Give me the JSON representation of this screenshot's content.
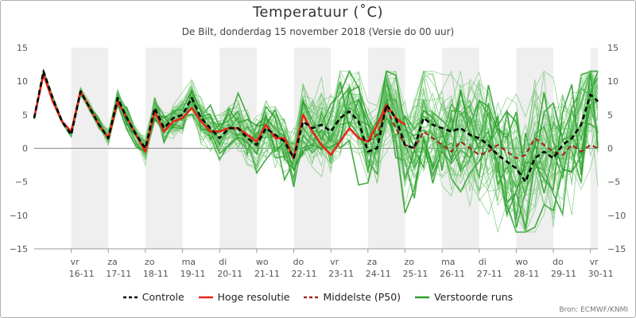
{
  "chart_data": {
    "type": "line",
    "title": "Temperatuur (˚C)",
    "subtitle": "De Bilt, donderdag 15 november 2018 (Versie do 00 uur)",
    "credits": "Bron: ECMWF/KNMI",
    "y_ticks": [
      "15",
      "10",
      "5",
      "0",
      "−5",
      "−10",
      "−15"
    ],
    "ylim": [
      -15,
      15
    ],
    "xlim_days": [
      15.0,
      30.2
    ],
    "x_ticks": [
      {
        "day": "vr",
        "date": "16-11",
        "x": 16.0
      },
      {
        "day": "za",
        "date": "17-11",
        "x": 17.0
      },
      {
        "day": "zo",
        "date": "18-11",
        "x": 18.0
      },
      {
        "day": "ma",
        "date": "19-11",
        "x": 19.0
      },
      {
        "day": "di",
        "date": "20-11",
        "x": 20.0
      },
      {
        "day": "wo",
        "date": "21-11",
        "x": 21.0
      },
      {
        "day": "do",
        "date": "22-11",
        "x": 22.0
      },
      {
        "day": "vr",
        "date": "23-11",
        "x": 23.0
      },
      {
        "day": "za",
        "date": "24-11",
        "x": 24.0
      },
      {
        "day": "zo",
        "date": "25-11",
        "x": 25.0
      },
      {
        "day": "ma",
        "date": "26-11",
        "x": 26.0
      },
      {
        "day": "di",
        "date": "27-11",
        "x": 27.0
      },
      {
        "day": "wo",
        "date": "28-11",
        "x": 28.0
      },
      {
        "day": "do",
        "date": "29-11",
        "x": 29.0
      },
      {
        "day": "vr",
        "date": "30-11",
        "x": 30.0
      }
    ],
    "grid": false,
    "legend_position": "bottom-center",
    "colors": {
      "controle": "#000000",
      "hoge_resolutie": "#e8261a",
      "middelste": "#a0281c",
      "runs": "#2ca02c",
      "runs_thin": "#6cc46c",
      "band": "#efefef"
    },
    "series": [
      {
        "name": "Controle",
        "style": "dashed",
        "x": [
          15.0,
          15.25,
          15.5,
          15.75,
          16.0,
          16.25,
          16.5,
          16.75,
          17.0,
          17.25,
          17.5,
          17.75,
          18.0,
          18.25,
          18.5,
          18.75,
          19.0,
          19.25,
          19.5,
          19.75,
          20.0,
          20.25,
          20.5,
          20.75,
          21.0,
          21.25,
          21.5,
          21.75,
          22.0,
          22.25,
          22.5,
          22.75,
          23.0,
          23.25,
          23.5,
          23.75,
          24.0,
          24.25,
          24.5,
          24.75,
          25.0,
          25.25,
          25.5,
          25.75,
          26.0,
          26.25,
          26.5,
          26.75,
          27.0,
          27.25,
          27.5,
          27.75,
          28.0,
          28.25,
          28.5,
          28.75,
          29.0,
          29.25,
          29.5,
          29.75,
          30.0,
          30.2
        ],
        "values": [
          4.5,
          11.5,
          7.5,
          4.0,
          2.0,
          8.5,
          6.0,
          3.5,
          1.5,
          7.5,
          4.5,
          2.0,
          0.0,
          6.0,
          3.0,
          4.5,
          5.0,
          7.5,
          4.5,
          3.0,
          1.5,
          3.0,
          3.0,
          1.5,
          0.5,
          3.0,
          2.0,
          1.0,
          -1.5,
          4.0,
          3.0,
          3.5,
          2.5,
          4.5,
          5.5,
          4.0,
          -0.5,
          0.0,
          6.5,
          4.5,
          0.5,
          0.0,
          4.5,
          3.5,
          3.0,
          2.5,
          3.0,
          2.0,
          1.5,
          0.5,
          -1.0,
          -2.0,
          -3.0,
          -5.0,
          -1.5,
          -0.5,
          -1.5,
          0.5,
          1.5,
          3.5,
          8.0,
          7.0
        ]
      },
      {
        "name": "Hoge resolutie",
        "style": "solid-thick",
        "x": [
          15.0,
          15.25,
          15.5,
          15.75,
          16.0,
          16.25,
          16.5,
          16.75,
          17.0,
          17.25,
          17.5,
          17.75,
          18.0,
          18.25,
          18.5,
          18.75,
          19.0,
          19.25,
          19.5,
          19.75,
          20.0,
          20.25,
          20.5,
          20.75,
          21.0,
          21.25,
          21.5,
          21.75,
          22.0,
          22.25,
          22.5,
          22.75,
          23.0,
          23.25,
          23.5,
          23.75,
          24.0,
          24.25,
          24.5,
          24.75,
          25.0
        ],
        "values": [
          4.5,
          11.0,
          7.0,
          4.0,
          2.5,
          8.5,
          6.0,
          3.5,
          1.5,
          7.0,
          4.5,
          2.0,
          -0.5,
          5.5,
          2.5,
          4.0,
          4.5,
          6.0,
          4.0,
          2.5,
          2.5,
          3.0,
          3.0,
          2.0,
          1.0,
          3.5,
          1.5,
          1.5,
          -1.5,
          5.0,
          2.5,
          0.5,
          -1.0,
          1.0,
          3.0,
          1.5,
          1.0,
          3.5,
          6.5,
          4.5,
          3.5
        ]
      },
      {
        "name": "Middelste (P50)",
        "style": "dashed",
        "x": [
          24.0,
          24.25,
          24.5,
          24.75,
          25.0,
          25.25,
          25.5,
          25.75,
          26.0,
          26.25,
          26.5,
          26.75,
          27.0,
          27.25,
          27.5,
          27.75,
          28.0,
          28.25,
          28.5,
          28.75,
          29.0,
          29.25,
          29.5,
          29.75,
          30.0,
          30.2
        ],
        "values": [
          1.0,
          2.0,
          6.0,
          3.0,
          0.5,
          0.0,
          2.5,
          1.5,
          0.5,
          -0.5,
          1.0,
          0.0,
          -1.0,
          -0.5,
          0.5,
          -0.5,
          -1.5,
          -1.0,
          1.5,
          0.5,
          -0.5,
          -1.0,
          0.5,
          -0.5,
          0.5,
          0.0
        ]
      },
      {
        "name": "Verstoorde runs",
        "style": "ensemble",
        "members": 51
      }
    ]
  },
  "legend": [
    {
      "label": "Controle",
      "key": "controle",
      "style": "dashed"
    },
    {
      "label": "Hoge resolutie",
      "key": "hoge_resolutie",
      "style": "solid"
    },
    {
      "label": "Middelste (P50)",
      "key": "middelste",
      "style": "dashed"
    },
    {
      "label": "Verstoorde runs",
      "key": "runs",
      "style": "solid"
    }
  ]
}
